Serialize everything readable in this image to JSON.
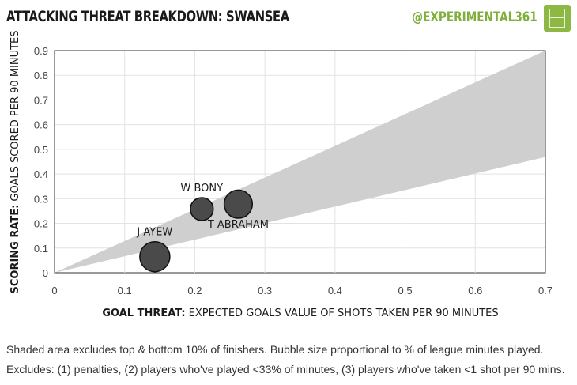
{
  "header": {
    "title": "ATTACKING THREAT BREAKDOWN:  SWANSEA",
    "handle": "@EXPERIMENTAL361"
  },
  "colors": {
    "band": "#cfcfcf",
    "bubble": "#4a4a4a",
    "bubble_stroke": "#111111",
    "accent": "#8db843"
  },
  "chart_data": {
    "type": "scatter",
    "title": "ATTACKING THREAT BREAKDOWN:  SWANSEA",
    "xlabel_bold": "GOAL THREAT:",
    "xlabel_rest": "EXPECTED GOALS VALUE OF SHOTS TAKEN PER 90 MINUTES",
    "ylabel_bold": "SCORING RATE:",
    "ylabel_rest": "GOALS SCORED PER 90 MINUTES",
    "xlim": [
      0,
      0.7
    ],
    "ylim": [
      0,
      0.9
    ],
    "x_ticks": [
      "0",
      "0.1",
      "0.2",
      "0.3",
      "0.4",
      "0.5",
      "0.6",
      "0.7"
    ],
    "y_ticks": [
      "0",
      "0.1",
      "0.2",
      "0.3",
      "0.4",
      "0.5",
      "0.6",
      "0.7",
      "0.8",
      "0.9"
    ],
    "grid": true,
    "band": {
      "upper_slope": 1.29,
      "lower_slope": 0.67
    },
    "points": [
      {
        "label": "J AYEW",
        "x": 0.143,
        "y": 0.065,
        "size": 1.0
      },
      {
        "label": "W BONY",
        "x": 0.21,
        "y": 0.258,
        "size": 0.58
      },
      {
        "label": "T ABRAHAM",
        "x": 0.262,
        "y": 0.278,
        "size": 0.88
      }
    ]
  },
  "footnotes": [
    "Shaded area excludes top & bottom 10% of finishers. Bubble size proportional to % of league minutes played.",
    "Excludes: (1) penalties, (2) players who've played <33% of minutes, (3) players who've taken <1 shot per 90 mins."
  ]
}
